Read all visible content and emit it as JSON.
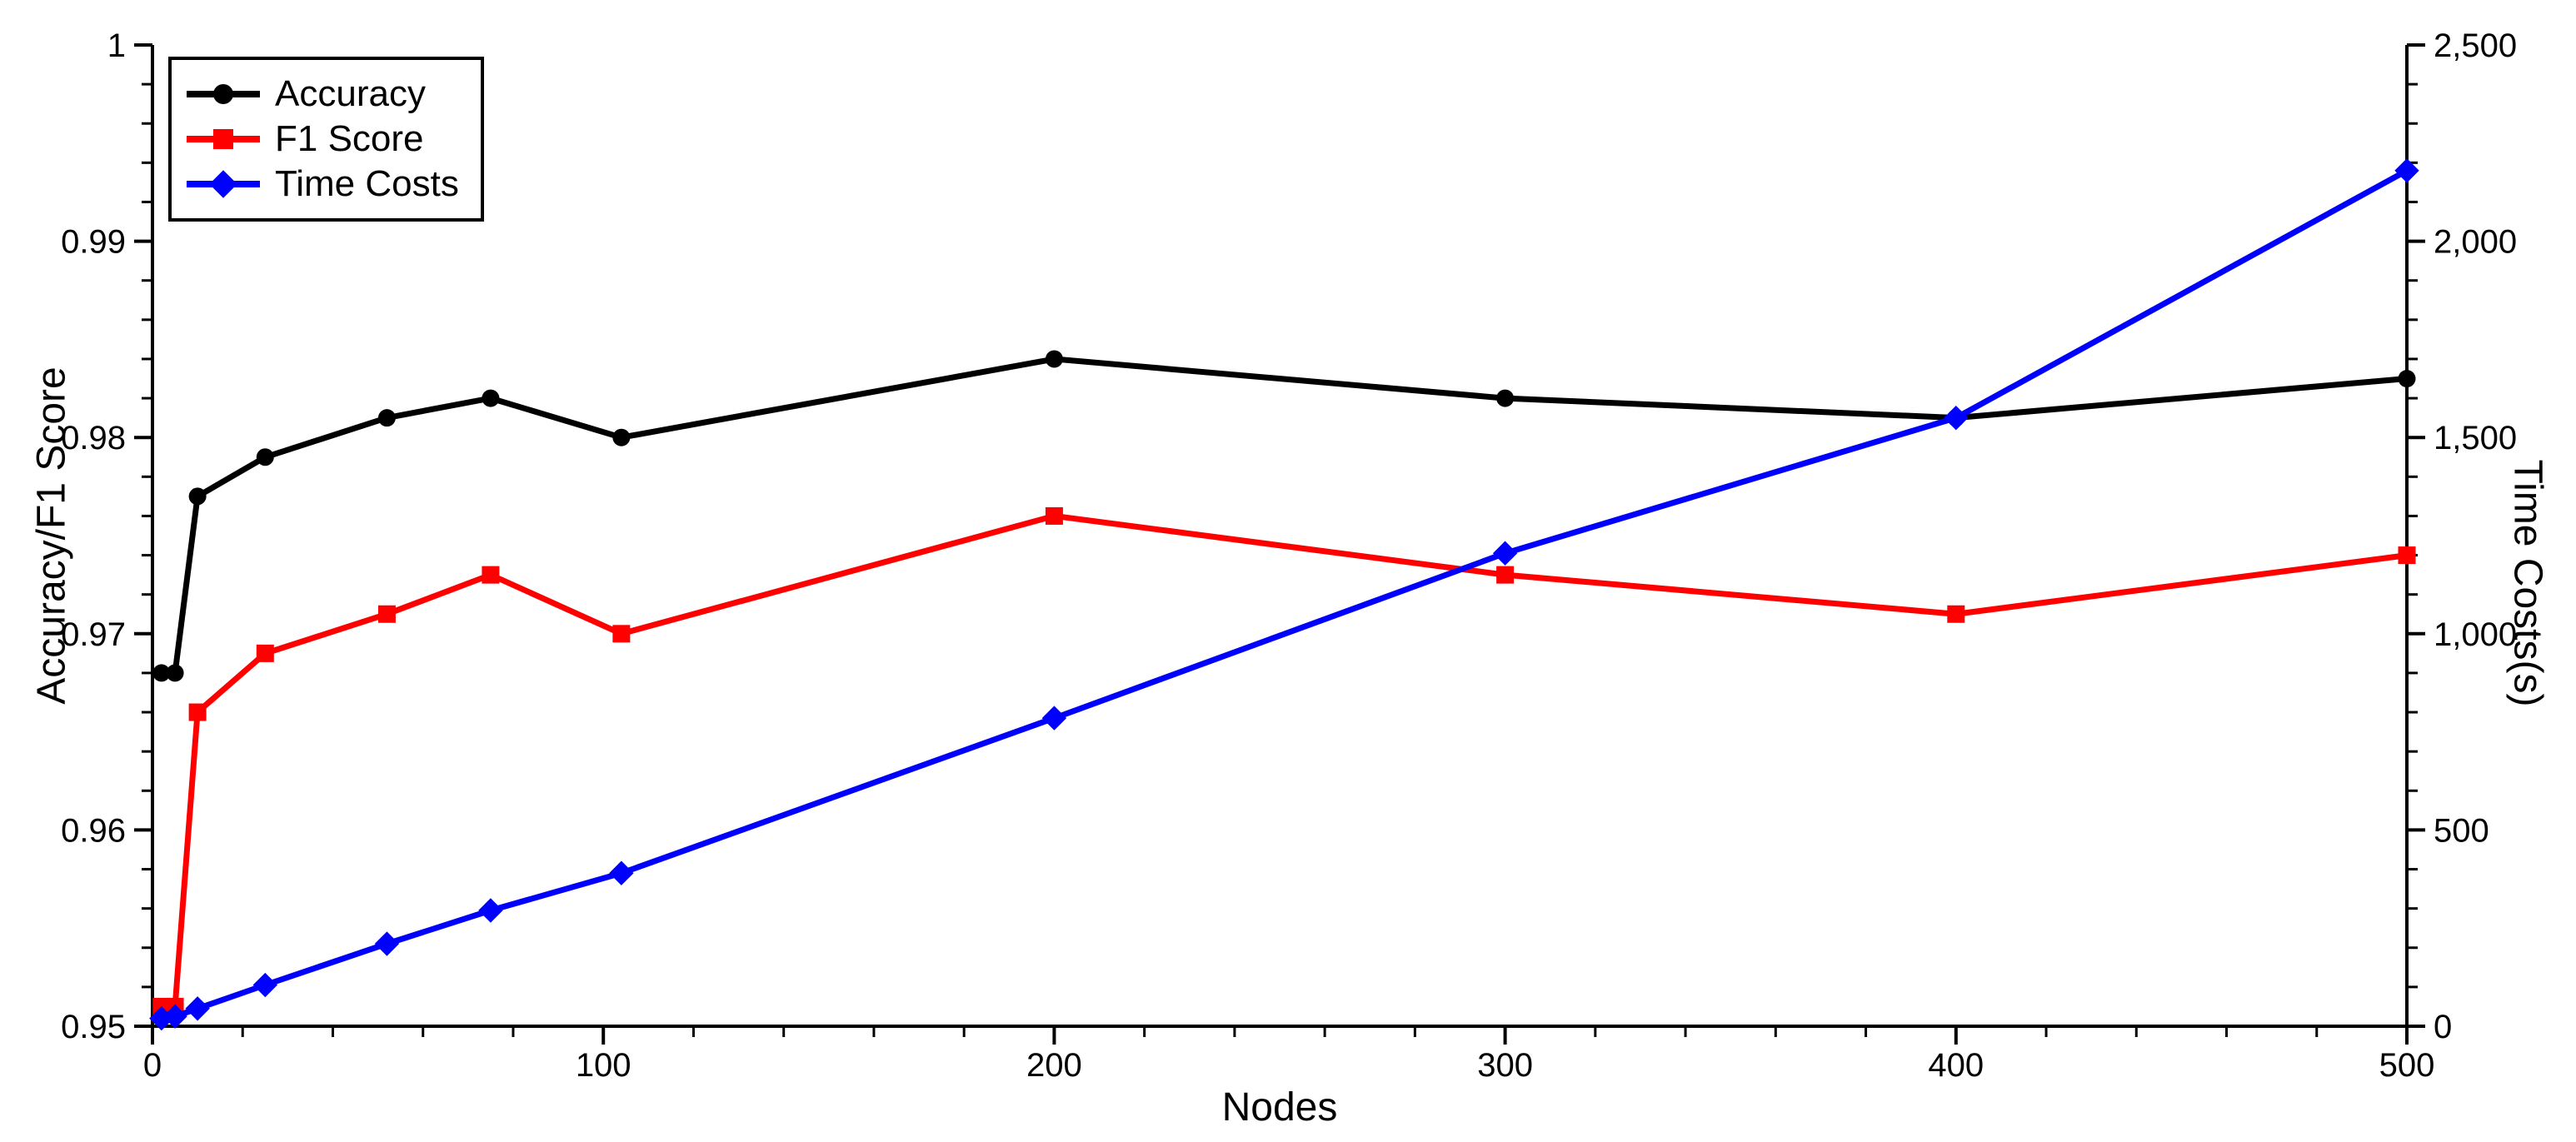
{
  "chart_data": {
    "type": "line",
    "title": "",
    "background": "#ffffff",
    "grid": false,
    "x": [
      2,
      5,
      10,
      25,
      52,
      75,
      104,
      200,
      300,
      400,
      500
    ],
    "x_axis": {
      "label": "Nodes",
      "min": 0,
      "max": 500,
      "major_tick_step": 100,
      "minor_tick_step": 20,
      "tick_labels": [
        "0",
        "100",
        "200",
        "300",
        "400",
        "500"
      ]
    },
    "y_left": {
      "label": "Accuracy/F1 Score",
      "min": 0.95,
      "max": 1.0,
      "major_tick_step": 0.01,
      "minor_tick_step": 0.002,
      "tick_labels": [
        "0.95",
        "0.96",
        "0.97",
        "0.98",
        "0.99",
        "1"
      ]
    },
    "y_right": {
      "label": "Time Costs(s)",
      "min": 0,
      "max": 2500,
      "major_tick_step": 500,
      "minor_tick_step": 100,
      "tick_labels": [
        "0",
        "500",
        "1,000",
        "1,500",
        "2,000",
        "2,500"
      ]
    },
    "series": [
      {
        "name": "Accuracy",
        "axis": "left",
        "color": "#000000",
        "marker": "circle",
        "values": [
          0.968,
          0.968,
          0.977,
          0.979,
          0.981,
          0.982,
          0.98,
          0.984,
          0.982,
          0.981,
          0.983
        ]
      },
      {
        "name": "F1 Score",
        "axis": "left",
        "color": "#ff0000",
        "marker": "square",
        "values": [
          0.951,
          0.951,
          0.966,
          0.969,
          0.971,
          0.973,
          0.97,
          0.976,
          0.973,
          0.971,
          0.974
        ]
      },
      {
        "name": "Time Costs",
        "axis": "right",
        "color": "#0000ff",
        "marker": "diamond",
        "values": [
          20,
          25,
          45,
          105,
          210,
          295,
          390,
          785,
          1205,
          1550,
          2180
        ]
      }
    ],
    "legend": {
      "position": "top-left",
      "items": [
        "Accuracy",
        "F1 Score",
        "Time Costs"
      ]
    }
  }
}
